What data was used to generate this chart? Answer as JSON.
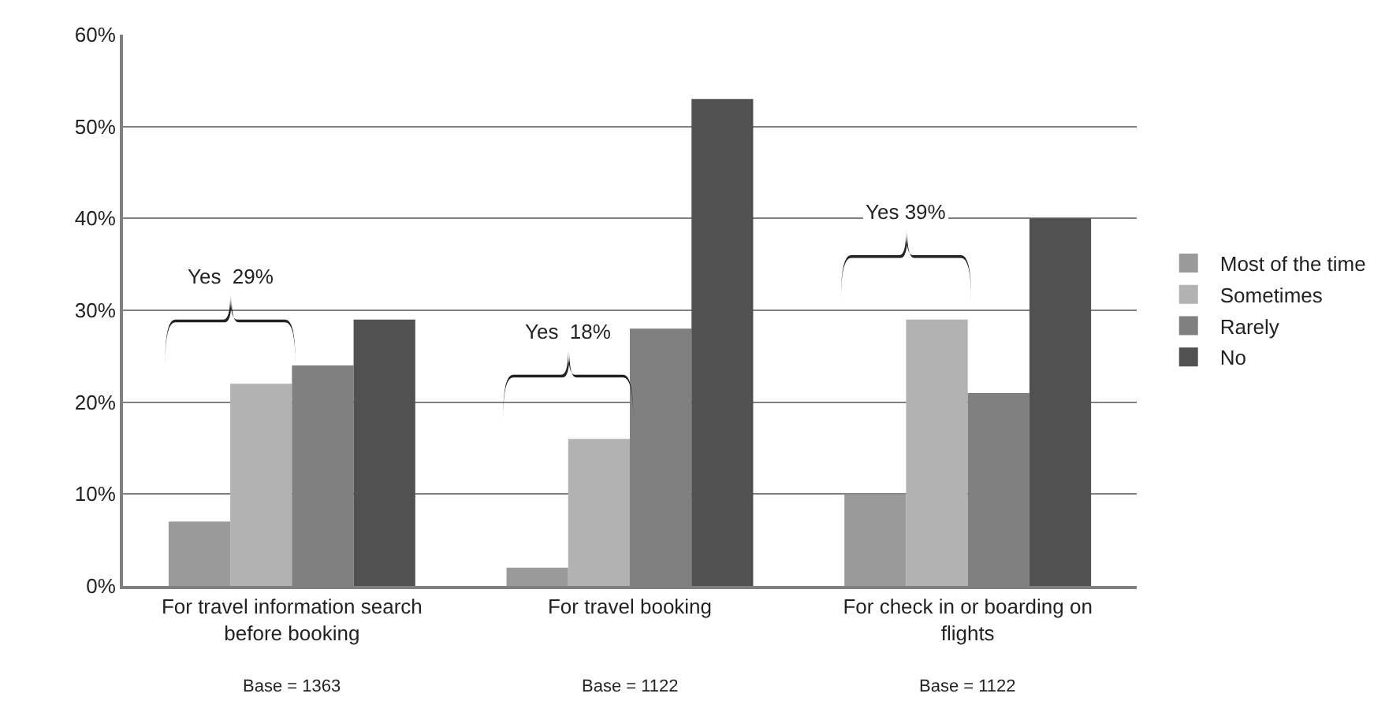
{
  "chart_data": {
    "type": "bar",
    "categories": [
      "For travel information search before booking",
      "For travel booking",
      "For check in or boarding on flights"
    ],
    "series": [
      {
        "name": "Most of the time",
        "color": "#9a9a9a",
        "values": [
          7,
          2,
          10
        ]
      },
      {
        "name": "Sometimes",
        "color": "#b2b2b2",
        "values": [
          22,
          16,
          29
        ]
      },
      {
        "name": "Rarely",
        "color": "#808080",
        "values": [
          24,
          28,
          21
        ]
      },
      {
        "name": "No",
        "color": "#515151",
        "values": [
          29,
          53,
          40
        ]
      }
    ],
    "ylim": [
      0,
      60
    ],
    "yticks": [
      {
        "value": 0,
        "label": "0%"
      },
      {
        "value": 10,
        "label": "10%"
      },
      {
        "value": 20,
        "label": "20%"
      },
      {
        "value": 30,
        "label": "30%"
      },
      {
        "value": 40,
        "label": "40%"
      },
      {
        "value": 50,
        "label": "50%"
      },
      {
        "value": 60,
        "label": "60%"
      }
    ],
    "grid": "y",
    "legend": "right",
    "annotations": [
      "Yes  29%",
      "Yes  18%",
      "Yes 39%",
      "Base = 1363",
      "Base = 1122",
      "Base = 1122"
    ]
  }
}
